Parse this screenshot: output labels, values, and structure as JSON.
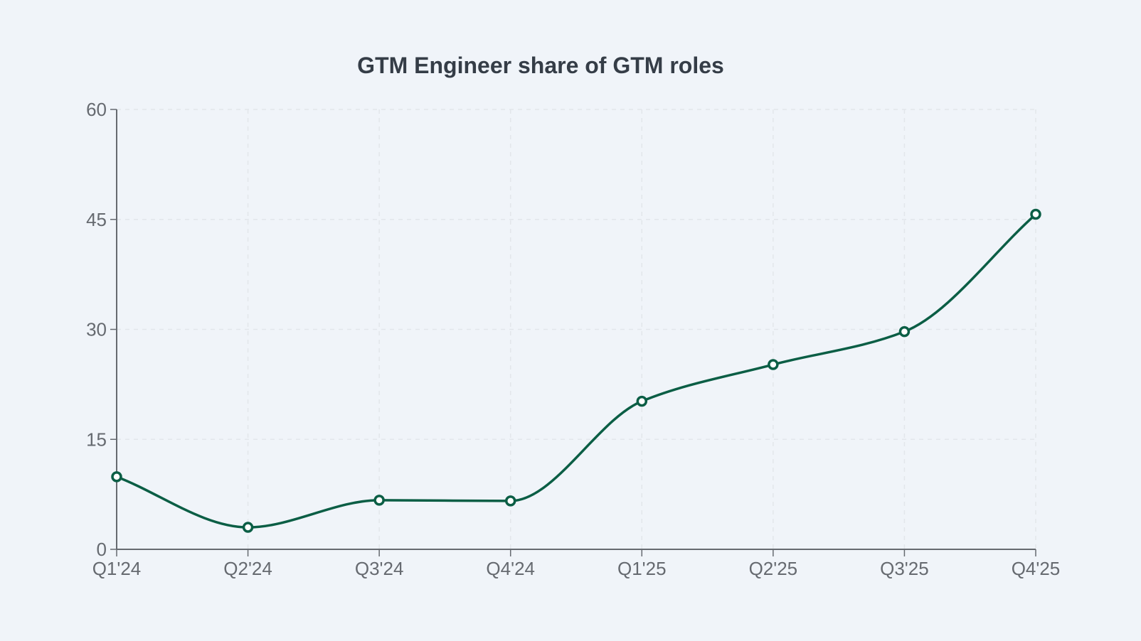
{
  "chart_data": {
    "type": "line",
    "title": "GTM Engineer share of GTM roles",
    "xlabel": "",
    "ylabel": "",
    "categories": [
      "Q1'24",
      "Q2'24",
      "Q3'24",
      "Q4'24",
      "Q1'25",
      "Q2'25",
      "Q3'25",
      "Q4'25"
    ],
    "series": [
      {
        "values": [
          9.9,
          3.0,
          6.7,
          6.6,
          20.2,
          25.2,
          29.7,
          45.7
        ]
      }
    ],
    "ylim": [
      0,
      60
    ],
    "yticks": [
      0,
      15,
      30,
      45,
      60
    ],
    "grid": true,
    "curve": "smooth",
    "markers": "hollow-circle",
    "colors": {
      "line": "#0b5e45",
      "background": "#f0f4f9",
      "grid": "#e2e6eb",
      "axis": "#666a70"
    }
  }
}
